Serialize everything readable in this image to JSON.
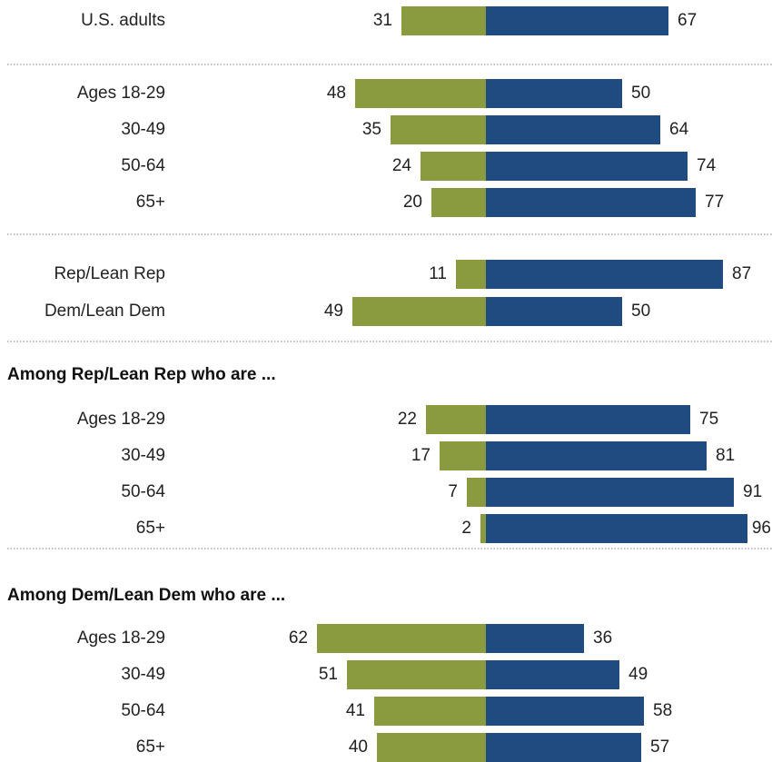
{
  "chart_data": {
    "type": "bar",
    "orientation": "horizontal-diverging",
    "colors": {
      "left": "#8a9a3f",
      "right": "#1f4b80"
    },
    "sections": [
      {
        "heading": "",
        "rows": [
          {
            "label": "U.S. adults",
            "left": 31,
            "right": 67
          }
        ]
      },
      {
        "heading": "",
        "rows": [
          {
            "label": "Ages 18-29",
            "left": 48,
            "right": 50
          },
          {
            "label": "30-49",
            "left": 35,
            "right": 64
          },
          {
            "label": "50-64",
            "left": 24,
            "right": 74
          },
          {
            "label": "65+",
            "left": 20,
            "right": 77
          }
        ]
      },
      {
        "heading": "",
        "rows": [
          {
            "label": "Rep/Lean Rep",
            "left": 11,
            "right": 87
          },
          {
            "label": "Dem/Lean Dem",
            "left": 49,
            "right": 50
          }
        ]
      },
      {
        "heading": "Among Rep/Lean Rep who are ...",
        "rows": [
          {
            "label": "Ages 18-29",
            "left": 22,
            "right": 75
          },
          {
            "label": "30-49",
            "left": 17,
            "right": 81
          },
          {
            "label": "50-64",
            "left": 7,
            "right": 91
          },
          {
            "label": "65+",
            "left": 2,
            "right": 96
          }
        ]
      },
      {
        "heading": "Among Dem/Lean Dem who are ...",
        "rows": [
          {
            "label": "Ages 18-29",
            "left": 62,
            "right": 36
          },
          {
            "label": "30-49",
            "left": 51,
            "right": 49
          },
          {
            "label": "50-64",
            "left": 41,
            "right": 58
          },
          {
            "label": "65+",
            "left": 40,
            "right": 57
          }
        ]
      }
    ]
  }
}
